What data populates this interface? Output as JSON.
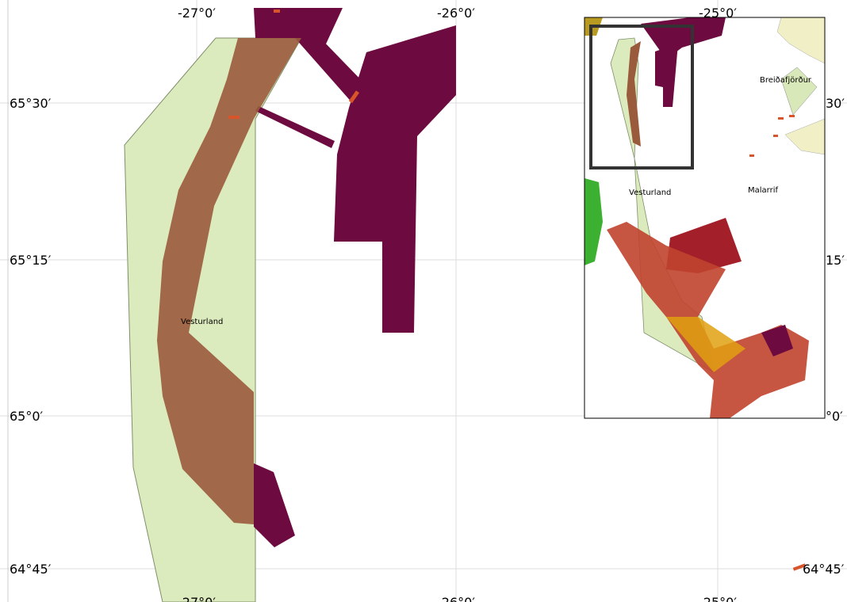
{
  "grid": {
    "top_labels": [
      "-27°0′",
      "-26°0′",
      "-25°0′"
    ],
    "bottom_labels": [
      "-27°0′",
      "-26°0′",
      "-25°0′"
    ],
    "left_labels": [
      "65°30′",
      "65°15′",
      "65°0′",
      "64°45′"
    ],
    "right_labels": [
      "30′",
      "15′",
      "°0′",
      "64°45′"
    ]
  },
  "map": {
    "place_labels": [
      "Vesturland"
    ]
  },
  "inset": {
    "place_labels": [
      "Breiðafjörður",
      "Vesturland",
      "Malarrif"
    ]
  }
}
